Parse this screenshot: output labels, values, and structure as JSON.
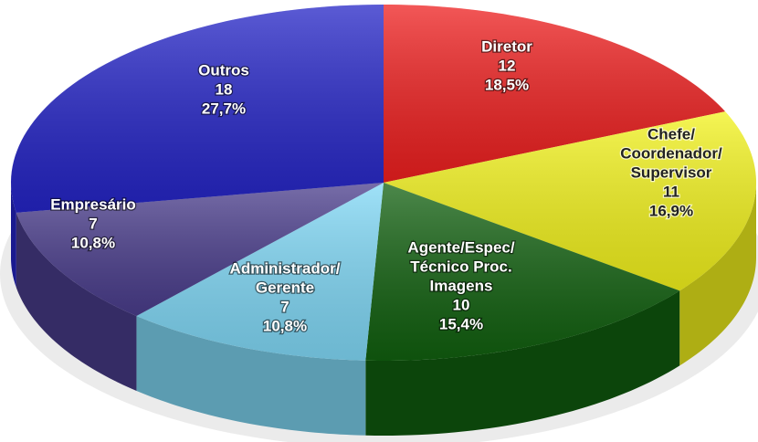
{
  "chart_data": {
    "type": "pie3d",
    "categories": [
      [
        "Diretor"
      ],
      [
        "Chefe/",
        "Coordenador/",
        "Supervisor"
      ],
      [
        "Agente/Espec/",
        "Técnico Proc.",
        "Imagens"
      ],
      [
        "Administrador/",
        "Gerente"
      ],
      [
        "Empresário"
      ],
      [
        "Outros"
      ]
    ],
    "values": [
      12,
      11,
      10,
      7,
      7,
      18
    ],
    "percent_values": [
      18.5,
      16.9,
      15.4,
      10.8,
      10.8,
      27.7
    ],
    "percent_labels": [
      "18,5%",
      "16,9%",
      "15,4%",
      "10,8%",
      "10,8%",
      "27,7%"
    ],
    "colors": [
      "#ee1f1f",
      "#f2f21c",
      "#11600f",
      "#80d8f6",
      "#4a3d8c",
      "#2424c6"
    ]
  }
}
